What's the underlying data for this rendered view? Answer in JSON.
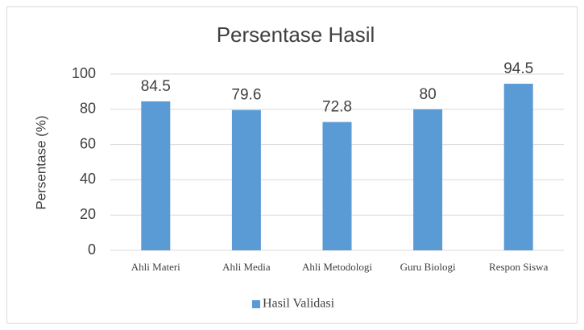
{
  "chart_data": {
    "type": "bar",
    "title": "Persentase Hasil",
    "y_label": "Persentase (%)",
    "categories": [
      "Ahli Materi",
      "Ahli Media",
      "Ahli Metodologi",
      "Guru Biologi",
      "Respon Siswa"
    ],
    "series": [
      {
        "name": "Hasil Validasi",
        "color": "#5b9bd5",
        "values": [
          84.5,
          79.6,
          72.8,
          80,
          94.5
        ]
      }
    ],
    "ylim": [
      0,
      100
    ],
    "yticks": [
      0,
      20,
      40,
      60,
      80,
      100
    ],
    "grid": true,
    "legend": "bottom"
  }
}
